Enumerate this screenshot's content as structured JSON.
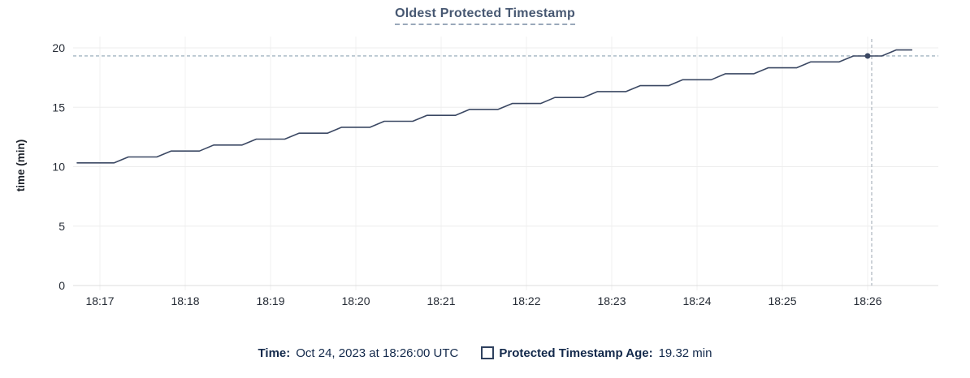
{
  "colors": {
    "title": "#475872",
    "line": "#3b4863",
    "grid_h": "#ededed",
    "grid_v": "#f0f0f0",
    "axis": "#dcdcdc",
    "tick_text": "#262c36",
    "ylabel_text": "#1c2129",
    "dashed_h": "#a4b6c2",
    "dashed_v": "#b2bac2",
    "legend_text": "#13294b"
  },
  "legend": {
    "time_label": "Time:",
    "time_value": "Oct 24, 2023 at 18:26:00 UTC",
    "series_label": "Protected Timestamp Age:",
    "series_value": "19.32 min"
  },
  "chart_data": {
    "type": "line",
    "title": "Oldest Protected Timestamp",
    "xlabel": "",
    "ylabel": "time (min)",
    "ylim": [
      0,
      20
    ],
    "y_ticks": [
      0,
      5,
      10,
      15,
      20
    ],
    "x_ticks": [
      "18:17",
      "18:18",
      "18:19",
      "18:20",
      "18:21",
      "18:22",
      "18:23",
      "18:24",
      "18:25",
      "18:26"
    ],
    "grid": true,
    "legend_position": "bottom",
    "hover": {
      "time": "18:26:00",
      "value": 19.32,
      "value_label": "19.32 min",
      "time_label": "Oct 24, 2023 at 18:26:00 UTC"
    },
    "series": [
      {
        "name": "Protected Timestamp Age",
        "unit": "min",
        "color": "#3b4863",
        "points": [
          {
            "t": "18:16:44",
            "v": 10.32
          },
          {
            "t": "18:17:10",
            "v": 10.32
          },
          {
            "t": "18:17:20",
            "v": 10.82
          },
          {
            "t": "18:17:40",
            "v": 10.82
          },
          {
            "t": "18:17:50",
            "v": 11.32
          },
          {
            "t": "18:18:10",
            "v": 11.32
          },
          {
            "t": "18:18:20",
            "v": 11.82
          },
          {
            "t": "18:18:40",
            "v": 11.82
          },
          {
            "t": "18:18:50",
            "v": 12.32
          },
          {
            "t": "18:19:10",
            "v": 12.32
          },
          {
            "t": "18:19:20",
            "v": 12.82
          },
          {
            "t": "18:19:40",
            "v": 12.82
          },
          {
            "t": "18:19:50",
            "v": 13.32
          },
          {
            "t": "18:20:10",
            "v": 13.32
          },
          {
            "t": "18:20:20",
            "v": 13.82
          },
          {
            "t": "18:20:40",
            "v": 13.82
          },
          {
            "t": "18:20:50",
            "v": 14.32
          },
          {
            "t": "18:21:10",
            "v": 14.32
          },
          {
            "t": "18:21:20",
            "v": 14.82
          },
          {
            "t": "18:21:40",
            "v": 14.82
          },
          {
            "t": "18:21:50",
            "v": 15.32
          },
          {
            "t": "18:22:10",
            "v": 15.32
          },
          {
            "t": "18:22:20",
            "v": 15.82
          },
          {
            "t": "18:22:40",
            "v": 15.82
          },
          {
            "t": "18:22:50",
            "v": 16.32
          },
          {
            "t": "18:23:10",
            "v": 16.32
          },
          {
            "t": "18:23:20",
            "v": 16.82
          },
          {
            "t": "18:23:40",
            "v": 16.82
          },
          {
            "t": "18:23:50",
            "v": 17.32
          },
          {
            "t": "18:24:10",
            "v": 17.32
          },
          {
            "t": "18:24:20",
            "v": 17.82
          },
          {
            "t": "18:24:40",
            "v": 17.82
          },
          {
            "t": "18:24:50",
            "v": 18.32
          },
          {
            "t": "18:25:10",
            "v": 18.32
          },
          {
            "t": "18:25:20",
            "v": 18.82
          },
          {
            "t": "18:25:40",
            "v": 18.82
          },
          {
            "t": "18:25:50",
            "v": 19.32
          },
          {
            "t": "18:26:10",
            "v": 19.32
          },
          {
            "t": "18:26:20",
            "v": 19.82
          },
          {
            "t": "18:26:31",
            "v": 19.82
          }
        ]
      }
    ]
  }
}
